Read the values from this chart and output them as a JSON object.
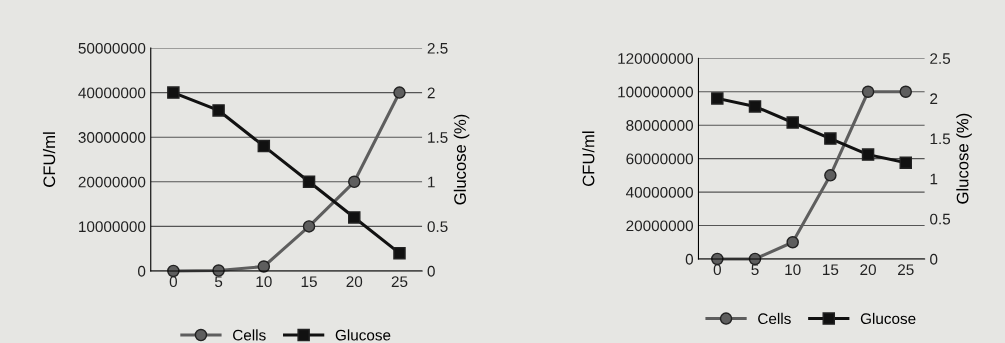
{
  "chart_data": [
    {
      "type": "line",
      "categories": [
        "0",
        "5",
        "10",
        "15",
        "20",
        "25"
      ],
      "ylabel": "CFU/ml",
      "y2label": "Glucose (%)",
      "ylim": [
        0,
        50000000
      ],
      "yticks": [
        0,
        10000000,
        20000000,
        30000000,
        40000000,
        50000000
      ],
      "y2lim": [
        0,
        2.5
      ],
      "y2ticks": [
        0,
        0.5,
        1,
        1.5,
        2,
        2.5
      ],
      "grid": "y",
      "legend": "bottom",
      "line_style": "solid",
      "series": [
        {
          "name": "Cells",
          "color": "#5e5e5e",
          "marker": "circle",
          "values": [
            0,
            100000,
            1000000,
            10000000,
            20000000,
            40000000
          ]
        },
        {
          "name": "Glucose",
          "color": "#111111",
          "marker": "square",
          "axis": "y2",
          "values": [
            2,
            1.8,
            1.4,
            1.0,
            0.6,
            0.2
          ]
        }
      ]
    },
    {
      "type": "line",
      "categories": [
        "0",
        "5",
        "10",
        "15",
        "20",
        "25"
      ],
      "ylabel": "CFU/ml",
      "y2label": "Glucose (%)",
      "ylim": [
        0,
        120000000
      ],
      "yticks": [
        0,
        20000000,
        40000000,
        60000000,
        80000000,
        100000000,
        120000000
      ],
      "y2lim": [
        0,
        2.5
      ],
      "y2ticks": [
        0,
        0.5,
        1,
        1.5,
        2,
        2.5
      ],
      "grid": "y",
      "legend": "bottom",
      "line_style": "solid",
      "series": [
        {
          "name": "Cells",
          "color": "#5e5e5e",
          "marker": "circle",
          "values": [
            0,
            0,
            10000000,
            50000000,
            100000000,
            100000000
          ]
        },
        {
          "name": "Glucose",
          "color": "#111111",
          "marker": "square",
          "axis": "y2",
          "values": [
            2.0,
            1.9,
            1.7,
            1.5,
            1.3,
            1.2
          ]
        }
      ]
    }
  ]
}
